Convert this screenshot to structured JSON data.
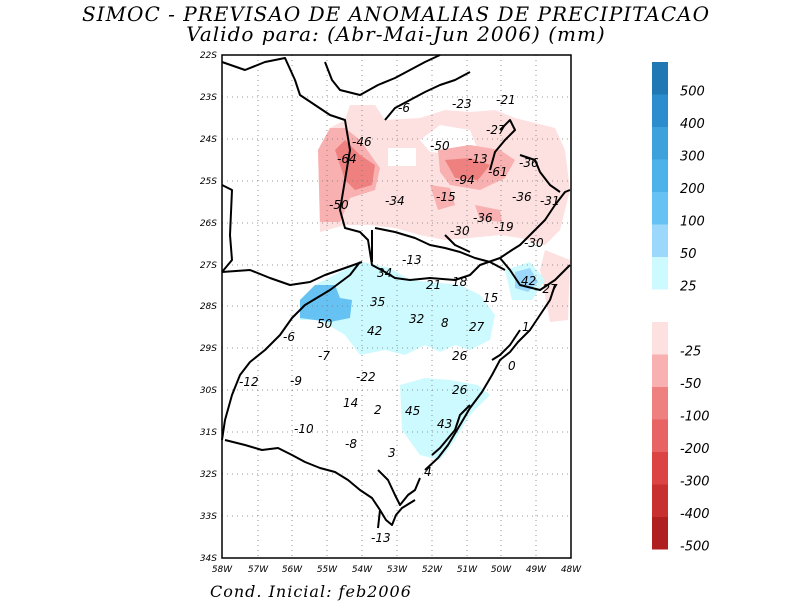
{
  "title": {
    "line1": "SIMOC - PREVISAO DE ANOMALIAS DE PRECIPITACAO",
    "line2": "Valido para: (Abr-Mai-Jun 2006) (mm)"
  },
  "footer": "Cond. Inicial: feb2006",
  "axes": {
    "lat_labels": [
      "22S",
      "23S",
      "24S",
      "25S",
      "26S",
      "27S",
      "28S",
      "29S",
      "30S",
      "31S",
      "32S",
      "33S",
      "34S"
    ],
    "lon_labels": [
      "58W",
      "57W",
      "56W",
      "55W",
      "54W",
      "53W",
      "52W",
      "51W",
      "50W",
      "49W",
      "48W"
    ]
  },
  "colorbar": {
    "positive": [
      {
        "label": "500",
        "color": "#1f78b4"
      },
      {
        "label": "400",
        "color": "#2b8cce"
      },
      {
        "label": "300",
        "color": "#3da2dc"
      },
      {
        "label": "200",
        "color": "#4eb2ea"
      },
      {
        "label": "100",
        "color": "#66c2f2"
      },
      {
        "label": "50",
        "color": "#9bd8fb"
      },
      {
        "label": "25",
        "color": "#cdfaff"
      }
    ],
    "negative": [
      {
        "label": "-25",
        "color": "#fde0e0"
      },
      {
        "label": "-50",
        "color": "#f8b0b0"
      },
      {
        "label": "-100",
        "color": "#ef8080"
      },
      {
        "label": "-200",
        "color": "#e86464"
      },
      {
        "label": "-300",
        "color": "#dc4444"
      },
      {
        "label": "-400",
        "color": "#c83030"
      },
      {
        "label": "-500",
        "color": "#b02020"
      }
    ]
  },
  "map_values": [
    "-6",
    "-23",
    "-21",
    "-27",
    "-46",
    "-50",
    "-13",
    "-36",
    "-64",
    "-94",
    "-61",
    "-34",
    "-15",
    "-36",
    "-31",
    "-50",
    "-36",
    "-30",
    "-19",
    "-30",
    "-13",
    "34",
    "21",
    "18",
    "42",
    "-27",
    "15",
    "35",
    "50",
    "32",
    "8",
    "27",
    "1",
    "42",
    "-6",
    "-7",
    "26",
    "0",
    "-12",
    "-9",
    "-22",
    "26",
    "14",
    "2",
    "45",
    "-10",
    "43",
    "-8",
    "3",
    "4",
    "-13"
  ]
}
